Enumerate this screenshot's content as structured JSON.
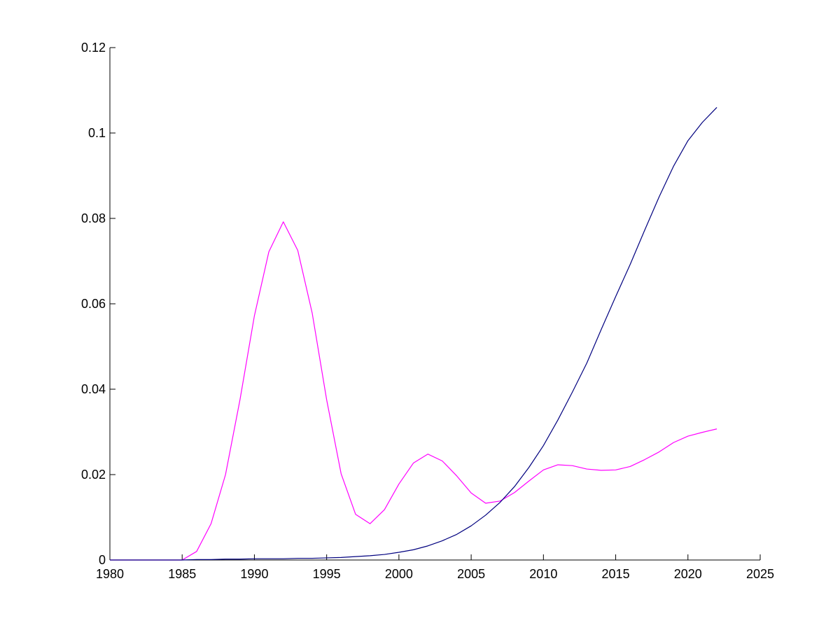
{
  "chart_data": {
    "type": "line",
    "title": "",
    "xlabel": "",
    "ylabel": "",
    "xlim": [
      1980,
      2025
    ],
    "ylim": [
      0,
      0.12
    ],
    "xticks": [
      1980,
      1985,
      1990,
      1995,
      2000,
      2005,
      2010,
      2015,
      2020,
      2025
    ],
    "yticks": [
      0,
      0.02,
      0.04,
      0.06,
      0.08,
      0.1,
      0.12
    ],
    "xtick_labels": [
      "1980",
      "1985",
      "1990",
      "1995",
      "2000",
      "2005",
      "2010",
      "2015",
      "2020",
      "2025"
    ],
    "ytick_labels": [
      "0",
      "0.02",
      "0.04",
      "0.06",
      "0.08",
      "0.1",
      "0.12"
    ],
    "grid": false,
    "legend": false,
    "series": [
      {
        "color": "#ff00ff",
        "x": [
          1980,
          1981,
          1982,
          1983,
          1984,
          1985,
          1986,
          1987,
          1988,
          1989,
          1990,
          1991,
          1992,
          1993,
          1994,
          1995,
          1996,
          1997,
          1998,
          1999,
          2000,
          2001,
          2002,
          2003,
          2004,
          2005,
          2006,
          2007,
          2008,
          2009,
          2010,
          2011,
          2012,
          2013,
          2014,
          2015,
          2016,
          2017,
          2018,
          2019,
          2020,
          2021,
          2022
        ],
        "values": [
          0,
          0,
          0,
          0,
          0,
          0,
          0.002,
          0.0085,
          0.02,
          0.0375,
          0.0572,
          0.0722,
          0.0792,
          0.0725,
          0.0578,
          0.0375,
          0.0202,
          0.0107,
          0.0085,
          0.0118,
          0.0178,
          0.0227,
          0.0248,
          0.0232,
          0.0197,
          0.0157,
          0.0133,
          0.0138,
          0.0158,
          0.0185,
          0.0211,
          0.0223,
          0.0221,
          0.0213,
          0.021,
          0.0211,
          0.0219,
          0.0235,
          0.0253,
          0.0275,
          0.029,
          0.0299,
          0.0307
        ]
      },
      {
        "color": "#00007f",
        "x": [
          1980,
          1981,
          1982,
          1983,
          1984,
          1985,
          1986,
          1987,
          1988,
          1989,
          1990,
          1991,
          1992,
          1993,
          1994,
          1995,
          1996,
          1997,
          1998,
          1999,
          2000,
          2001,
          2002,
          2003,
          2004,
          2005,
          2006,
          2007,
          2008,
          2009,
          2010,
          2011,
          2012,
          2013,
          2014,
          2015,
          2016,
          2017,
          2018,
          2019,
          2020,
          2021,
          2022
        ],
        "values": [
          0,
          0,
          0,
          0,
          0,
          0,
          0.0001,
          0.0001,
          0.0002,
          0.0002,
          0.0003,
          0.0003,
          0.0003,
          0.0004,
          0.0004,
          0.0005,
          0.0006,
          0.0008,
          0.001,
          0.0013,
          0.0018,
          0.0024,
          0.0033,
          0.0045,
          0.006,
          0.008,
          0.0105,
          0.0135,
          0.0172,
          0.0217,
          0.0268,
          0.0328,
          0.0393,
          0.0461,
          0.054,
          0.0617,
          0.0692,
          0.0772,
          0.085,
          0.0922,
          0.0982,
          0.1025,
          0.106
        ]
      }
    ]
  }
}
